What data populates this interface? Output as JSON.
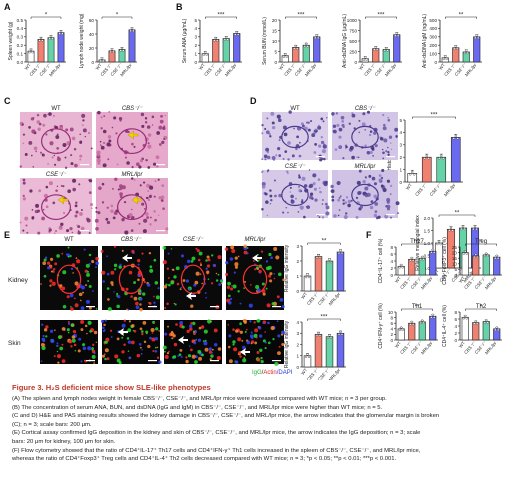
{
  "figure": {
    "title": "Figure 3. H₂S deficient mice show SLE-like phenotypes",
    "captions": [
      "(A) The spleen and lymph nodes weight in female CBS⁻/⁻, CSE⁻/⁻, and MRL/lpr mice were increased compared with WT mice; n = 3 per group.",
      "(B) The concentration of serum ANA, BUN, and dsDNA (IgG and IgM) in CBS⁻/⁻, CSE⁻/⁻, and MRL/lpr mice were higher than WT mice; n = 5.",
      "(C and D) H&E and PAS staining results showed the kidney damage in CBS⁻/⁻, CSE⁻/⁻, and MRL/lpr mice, the arrow indicates that the glomerular margin is broken",
      "(C); n = 3; scale bars: 200 μm.",
      "(E) Cortical assay confirmed IgG deposition in the kidney and skin of CBS⁻/⁻, CSE⁻/⁻, and MRL/lpr mice, the arrow indicates the IgG deposition; n = 3; scale",
      "bars: 20 μm for kidney, 100 μm for skin.",
      "(F) Flow cytometry showed that the ratio of CD4⁺IL-17⁺ Th17 cells and CD4⁺IFN-γ⁺ Th1 cells increased in the spleen of CBS⁻/⁻, CSE⁻/⁻, and MRL/lpr mice,",
      "whereas the ratio of CD4⁺Foxp3⁺ Treg cells and CD4⁺IL-4⁺ Th2 cells decreased compared with WT mice; n = 3; *p < 0.05; **p < 0.01; ***p < 0.001."
    ],
    "panel_letters": [
      "A",
      "B",
      "C",
      "D",
      "E",
      "F"
    ],
    "group_labels": [
      "WT",
      "CBS⁻/⁻",
      "CSE⁻/⁻",
      "MRL/lpr"
    ],
    "e_row_labels": [
      "Kidney",
      "Skin"
    ],
    "e_legend": {
      "igg": "IgG",
      "slash": "/",
      "actin": "Actin",
      "dapi": "/DAPI"
    },
    "colors": {
      "wt": "#ffffff",
      "cbs": "#f08070",
      "cse": "#66d2a8",
      "mrl": "#6a6af0",
      "caption_title": "#c0392b"
    }
  },
  "chart_data": [
    {
      "id": "A1",
      "type": "bar",
      "ylabel": "Spleen weight (g)",
      "ylim": [
        0,
        0.5
      ],
      "yticks": [
        "0.0",
        "0.1",
        "0.2",
        "0.3",
        "0.4",
        "0.5"
      ],
      "categories": [
        "WT",
        "CBS⁻/⁻",
        "CSE⁻/⁻",
        "MRL/lpr"
      ],
      "values": [
        0.13,
        0.27,
        0.29,
        0.35
      ],
      "sig": [
        {
          "from": 0,
          "to": 3,
          "label": "*"
        }
      ]
    },
    {
      "id": "A2",
      "type": "bar",
      "ylabel": "Lymph node weight (mg)",
      "ylim": [
        0,
        60
      ],
      "yticks": [
        "0",
        "20",
        "40",
        "60"
      ],
      "categories": [
        "WT",
        "CBS⁻/⁻",
        "CSE⁻/⁻",
        "MRL/lpr"
      ],
      "values": [
        3,
        16,
        18,
        46
      ],
      "sig": [
        {
          "from": 0,
          "to": 3,
          "label": "*"
        }
      ]
    },
    {
      "id": "B1",
      "type": "bar",
      "ylabel": "Serum ANA (μg/mL)",
      "ylim": [
        0,
        5
      ],
      "yticks": [
        "0",
        "1",
        "2",
        "3",
        "4",
        "5"
      ],
      "categories": [
        "WT",
        "CBS⁻/⁻",
        "CSE⁻/⁻",
        "MRL/lpr"
      ],
      "values": [
        1.0,
        2.7,
        2.8,
        3.4
      ],
      "sig": [
        {
          "from": 0,
          "to": 3,
          "label": "***"
        }
      ]
    },
    {
      "id": "B2",
      "type": "bar",
      "ylabel": "Serum BUN (mmol/L)",
      "ylim": [
        0,
        20
      ],
      "yticks": [
        "0",
        "5",
        "10",
        "15",
        "20"
      ],
      "categories": [
        "WT",
        "CBS⁻/⁻",
        "CSE⁻/⁻",
        "MRL/lpr"
      ],
      "values": [
        3,
        7,
        8,
        12
      ],
      "sig": [
        {
          "from": 0,
          "to": 3,
          "label": "***"
        }
      ]
    },
    {
      "id": "B3",
      "type": "bar",
      "ylabel": "Anti-dsDNA IgG (μg/mL)",
      "ylim": [
        0,
        1000
      ],
      "yticks": [
        "0",
        "250",
        "500",
        "750",
        "1000"
      ],
      "categories": [
        "WT",
        "CBS⁻/⁻",
        "CSE⁻/⁻",
        "MRL/lpr"
      ],
      "values": [
        80,
        320,
        300,
        650
      ],
      "sig": [
        {
          "from": 0,
          "to": 3,
          "label": "***"
        }
      ]
    },
    {
      "id": "B4",
      "type": "bar",
      "ylabel": "Anti-dsDNA IgM (ng/mL)",
      "ylim": [
        0,
        500
      ],
      "yticks": [
        "0",
        "100",
        "200",
        "300",
        "400",
        "500"
      ],
      "categories": [
        "WT",
        "CBS⁻/⁻",
        "CSE⁻/⁻",
        "MRL/lpr"
      ],
      "values": [
        50,
        170,
        120,
        300
      ],
      "sig": [
        {
          "from": 0,
          "to": 3,
          "label": "**"
        }
      ]
    },
    {
      "id": "C",
      "type": "bar",
      "ylabel": "Histological score",
      "ylim": [
        0,
        5
      ],
      "yticks": [
        "0",
        "1",
        "2",
        "3",
        "4",
        "5"
      ],
      "categories": [
        "WT",
        "CBS⁻/⁻",
        "CSE⁻/⁻",
        "MRL/lpr"
      ],
      "values": [
        0.7,
        2.0,
        2.0,
        3.6
      ],
      "sig": [
        {
          "from": 0,
          "to": 3,
          "label": "***"
        }
      ]
    },
    {
      "id": "D",
      "type": "bar",
      "ylabel": "Relative mesangial index",
      "ylim": [
        0,
        2.0
      ],
      "yticks": [
        "0.0",
        "0.5",
        "1.0",
        "1.5",
        "2.0"
      ],
      "categories": [
        "WT",
        "CBS⁻/⁻",
        "CSE⁻/⁻",
        "MRL/lpr"
      ],
      "values": [
        1.0,
        1.55,
        1.6,
        1.6
      ],
      "sig": [
        {
          "from": 0,
          "to": 3,
          "label": "**"
        }
      ]
    },
    {
      "id": "E1",
      "type": "bar",
      "ylabel": "Relative IgG intensity",
      "ylim": [
        0,
        3
      ],
      "yticks": [
        "0",
        "1",
        "2",
        "3"
      ],
      "categories": [
        "WT",
        "CBS⁻/⁻",
        "CSE⁻/⁻",
        "MRL/lpr"
      ],
      "values": [
        1.0,
        2.3,
        2.0,
        2.6
      ],
      "sig": [
        {
          "from": 0,
          "to": 3,
          "label": "**"
        }
      ]
    },
    {
      "id": "E2",
      "type": "bar",
      "ylabel": "Relative IgG intensity",
      "ylim": [
        0,
        4
      ],
      "yticks": [
        "0",
        "1",
        "2",
        "3",
        "4"
      ],
      "categories": [
        "WT",
        "CBS⁻/⁻",
        "CSE⁻/⁻",
        "MRL/lpr"
      ],
      "values": [
        1.0,
        2.9,
        2.7,
        3.0
      ],
      "sig": [
        {
          "from": 0,
          "to": 3,
          "label": "***"
        }
      ]
    },
    {
      "id": "F1",
      "type": "bar",
      "title": "Th17",
      "ylabel": "CD4⁺IL-17⁺ cell (%)",
      "ylim": [
        0,
        8
      ],
      "yticks": [
        "0",
        "2",
        "4",
        "6",
        "8"
      ],
      "categories": [
        "WT",
        "CBS⁻/⁻",
        "CSE⁻/⁻",
        "MRL/lpr"
      ],
      "values": [
        2.5,
        4.5,
        4.8,
        6.8
      ],
      "sig": [
        {
          "from": 0,
          "to": 3,
          "label": "***"
        }
      ]
    },
    {
      "id": "F2",
      "type": "bar",
      "title": "Treg",
      "ylabel": "CD4⁺FoxP3⁺ cell (%)",
      "ylim": [
        0,
        25
      ],
      "yticks": [
        "0",
        "5",
        "10",
        "15",
        "20",
        "25"
      ],
      "categories": [
        "WT",
        "CBS⁻/⁻",
        "CSE⁻/⁻",
        "MRL/lpr"
      ],
      "values": [
        20,
        17,
        18,
        16
      ],
      "sig": [
        {
          "from": 0,
          "to": 3,
          "label": "*"
        }
      ]
    },
    {
      "id": "F3",
      "type": "bar",
      "title": "Th1",
      "ylabel": "CD4⁺IFN-γ⁺ cell (%)",
      "ylim": [
        0,
        10
      ],
      "yticks": [
        "0",
        "2",
        "4",
        "6",
        "8",
        "10"
      ],
      "categories": [
        "WT",
        "CBS⁻/⁻",
        "CSE⁻/⁻",
        "MRL/lpr"
      ],
      "values": [
        4,
        6,
        6.5,
        8.5
      ],
      "sig": [
        {
          "from": 0,
          "to": 3,
          "label": "**"
        }
      ]
    },
    {
      "id": "F4",
      "type": "bar",
      "title": "Th2",
      "ylabel": "CD4⁺IL-4⁺ cell (%)",
      "ylim": [
        0,
        8
      ],
      "yticks": [
        "0",
        "2",
        "4",
        "6",
        "8"
      ],
      "categories": [
        "WT",
        "CBS⁻/⁻",
        "CSE⁻/⁻",
        "MRL/lpr"
      ],
      "values": [
        6.5,
        5.0,
        5.3,
        3.2
      ],
      "sig": [
        {
          "from": 0,
          "to": 3,
          "label": "*"
        }
      ]
    }
  ]
}
